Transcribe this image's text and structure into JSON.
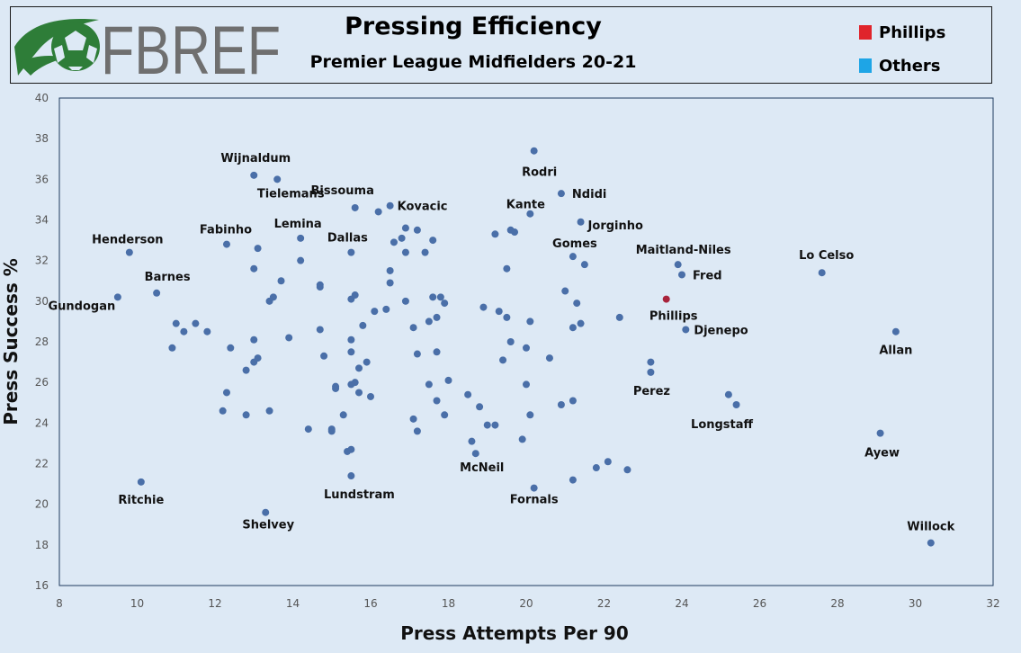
{
  "header": {
    "logo_text": "FBREF",
    "title": "Pressing Efficiency",
    "subtitle": "Premier League Midfielders 20-21"
  },
  "legend": [
    {
      "label": "Phillips",
      "color": "#e0242b"
    },
    {
      "label": "Others",
      "color": "#1ea5e6"
    }
  ],
  "colors": {
    "background": "#dde9f5",
    "point": "#4a6fa8",
    "highlight_point": "#a8233b"
  },
  "chart_data": {
    "type": "scatter",
    "title": "Pressing Efficiency",
    "subtitle": "Premier League Midfielders 20-21",
    "xlabel": "Press Attempts Per 90",
    "ylabel": "Press Success %",
    "xlim": [
      8,
      32
    ],
    "ylim": [
      16,
      40
    ],
    "xticks": [
      8,
      10,
      12,
      14,
      16,
      18,
      20,
      22,
      24,
      26,
      28,
      30,
      32
    ],
    "yticks": [
      16,
      18,
      20,
      22,
      24,
      26,
      28,
      30,
      32,
      34,
      36,
      38,
      40
    ],
    "grid": false,
    "legend_position": "top-right",
    "highlight": "Phillips",
    "labeled_points": [
      {
        "name": "Wijnaldum",
        "x": 13.0,
        "y": 36.2
      },
      {
        "name": "Tielemans",
        "x": 13.6,
        "y": 36.0
      },
      {
        "name": "Bissouma",
        "x": 15.6,
        "y": 34.6
      },
      {
        "name": "Kovacic",
        "x": 16.5,
        "y": 34.7
      },
      {
        "name": "Rodri",
        "x": 20.2,
        "y": 37.4
      },
      {
        "name": "Ndidi",
        "x": 20.9,
        "y": 35.3
      },
      {
        "name": "Kante",
        "x": 20.1,
        "y": 34.3
      },
      {
        "name": "Jorginho",
        "x": 21.4,
        "y": 33.9
      },
      {
        "name": "Henderson",
        "x": 9.8,
        "y": 32.4
      },
      {
        "name": "Fabinho",
        "x": 12.3,
        "y": 32.8
      },
      {
        "name": "Lemina",
        "x": 14.2,
        "y": 33.1
      },
      {
        "name": "Dallas",
        "x": 15.5,
        "y": 32.4
      },
      {
        "name": "Gomes",
        "x": 21.2,
        "y": 32.2
      },
      {
        "name": "Maitland-Niles",
        "x": 23.9,
        "y": 31.8
      },
      {
        "name": "Fred",
        "x": 24.0,
        "y": 31.3
      },
      {
        "name": "Lo Celso",
        "x": 27.6,
        "y": 31.4
      },
      {
        "name": "Barnes",
        "x": 10.5,
        "y": 30.4
      },
      {
        "name": "Gundogan",
        "x": 9.5,
        "y": 30.2
      },
      {
        "name": "Phillips",
        "x": 23.6,
        "y": 30.1
      },
      {
        "name": "Djenepo",
        "x": 24.1,
        "y": 28.6
      },
      {
        "name": "Allan",
        "x": 29.5,
        "y": 28.5
      },
      {
        "name": "Perez",
        "x": 23.2,
        "y": 26.5
      },
      {
        "name": "Longstaff",
        "x": 25.4,
        "y": 24.9
      },
      {
        "name": "Ayew",
        "x": 29.1,
        "y": 23.5
      },
      {
        "name": "McNeil",
        "x": 18.7,
        "y": 22.5
      },
      {
        "name": "Lundstram",
        "x": 15.5,
        "y": 21.4
      },
      {
        "name": "Fornals",
        "x": 20.2,
        "y": 20.8
      },
      {
        "name": "Ritchie",
        "x": 10.1,
        "y": 21.1
      },
      {
        "name": "Shelvey",
        "x": 13.3,
        "y": 19.6
      },
      {
        "name": "Willock",
        "x": 30.4,
        "y": 18.1
      }
    ],
    "unlabeled_points": [
      {
        "x": 11.0,
        "y": 28.9
      },
      {
        "x": 11.2,
        "y": 28.5
      },
      {
        "x": 11.5,
        "y": 28.9
      },
      {
        "x": 11.8,
        "y": 28.5
      },
      {
        "x": 10.9,
        "y": 27.7
      },
      {
        "x": 12.4,
        "y": 27.7
      },
      {
        "x": 12.3,
        "y": 25.5
      },
      {
        "x": 12.2,
        "y": 24.6
      },
      {
        "x": 12.8,
        "y": 24.4
      },
      {
        "x": 12.8,
        "y": 26.6
      },
      {
        "x": 13.0,
        "y": 27.0
      },
      {
        "x": 13.1,
        "y": 27.2
      },
      {
        "x": 13.0,
        "y": 28.1
      },
      {
        "x": 13.4,
        "y": 24.6
      },
      {
        "x": 13.1,
        "y": 32.6
      },
      {
        "x": 13.0,
        "y": 31.6
      },
      {
        "x": 13.4,
        "y": 30.0
      },
      {
        "x": 13.5,
        "y": 30.2
      },
      {
        "x": 13.7,
        "y": 31.0
      },
      {
        "x": 13.9,
        "y": 28.2
      },
      {
        "x": 14.2,
        "y": 32.0
      },
      {
        "x": 14.4,
        "y": 23.7
      },
      {
        "x": 14.7,
        "y": 30.8
      },
      {
        "x": 14.7,
        "y": 30.7
      },
      {
        "x": 14.7,
        "y": 28.6
      },
      {
        "x": 14.8,
        "y": 27.3
      },
      {
        "x": 15.0,
        "y": 23.7
      },
      {
        "x": 15.0,
        "y": 23.6
      },
      {
        "x": 15.1,
        "y": 25.8
      },
      {
        "x": 15.1,
        "y": 25.7
      },
      {
        "x": 15.3,
        "y": 24.4
      },
      {
        "x": 15.4,
        "y": 22.6
      },
      {
        "x": 15.5,
        "y": 22.7
      },
      {
        "x": 15.5,
        "y": 25.9
      },
      {
        "x": 15.6,
        "y": 26.0
      },
      {
        "x": 15.5,
        "y": 27.5
      },
      {
        "x": 15.5,
        "y": 28.1
      },
      {
        "x": 15.5,
        "y": 30.1
      },
      {
        "x": 15.6,
        "y": 30.3
      },
      {
        "x": 15.7,
        "y": 26.7
      },
      {
        "x": 15.7,
        "y": 25.5
      },
      {
        "x": 15.8,
        "y": 28.8
      },
      {
        "x": 15.9,
        "y": 27.0
      },
      {
        "x": 16.0,
        "y": 25.3
      },
      {
        "x": 16.1,
        "y": 29.5
      },
      {
        "x": 16.2,
        "y": 34.4
      },
      {
        "x": 16.4,
        "y": 29.6
      },
      {
        "x": 16.5,
        "y": 30.9
      },
      {
        "x": 16.5,
        "y": 31.5
      },
      {
        "x": 16.6,
        "y": 32.9
      },
      {
        "x": 16.8,
        "y": 33.1
      },
      {
        "x": 16.9,
        "y": 32.4
      },
      {
        "x": 16.9,
        "y": 30.0
      },
      {
        "x": 16.9,
        "y": 33.6
      },
      {
        "x": 17.1,
        "y": 28.7
      },
      {
        "x": 17.1,
        "y": 24.2
      },
      {
        "x": 17.2,
        "y": 23.6
      },
      {
        "x": 17.2,
        "y": 27.4
      },
      {
        "x": 17.2,
        "y": 33.5
      },
      {
        "x": 17.4,
        "y": 32.4
      },
      {
        "x": 17.5,
        "y": 29.0
      },
      {
        "x": 17.5,
        "y": 25.9
      },
      {
        "x": 17.6,
        "y": 33.0
      },
      {
        "x": 17.6,
        "y": 30.2
      },
      {
        "x": 17.7,
        "y": 29.2
      },
      {
        "x": 17.7,
        "y": 27.5
      },
      {
        "x": 17.7,
        "y": 25.1
      },
      {
        "x": 17.8,
        "y": 30.2
      },
      {
        "x": 17.9,
        "y": 29.9
      },
      {
        "x": 17.9,
        "y": 24.4
      },
      {
        "x": 18.0,
        "y": 26.1
      },
      {
        "x": 18.5,
        "y": 25.4
      },
      {
        "x": 18.6,
        "y": 23.1
      },
      {
        "x": 18.8,
        "y": 24.8
      },
      {
        "x": 18.9,
        "y": 29.7
      },
      {
        "x": 19.0,
        "y": 23.9
      },
      {
        "x": 19.2,
        "y": 23.9
      },
      {
        "x": 19.2,
        "y": 33.3
      },
      {
        "x": 19.3,
        "y": 29.5
      },
      {
        "x": 19.4,
        "y": 27.1
      },
      {
        "x": 19.5,
        "y": 29.2
      },
      {
        "x": 19.5,
        "y": 31.6
      },
      {
        "x": 19.6,
        "y": 28.0
      },
      {
        "x": 19.6,
        "y": 33.5
      },
      {
        "x": 19.7,
        "y": 33.4
      },
      {
        "x": 19.9,
        "y": 23.2
      },
      {
        "x": 20.0,
        "y": 27.7
      },
      {
        "x": 20.0,
        "y": 25.9
      },
      {
        "x": 20.1,
        "y": 24.4
      },
      {
        "x": 20.1,
        "y": 29.0
      },
      {
        "x": 20.6,
        "y": 27.2
      },
      {
        "x": 20.9,
        "y": 24.9
      },
      {
        "x": 21.0,
        "y": 30.5
      },
      {
        "x": 21.2,
        "y": 28.7
      },
      {
        "x": 21.2,
        "y": 21.2
      },
      {
        "x": 21.2,
        "y": 25.1
      },
      {
        "x": 21.3,
        "y": 29.9
      },
      {
        "x": 21.4,
        "y": 28.9
      },
      {
        "x": 21.5,
        "y": 31.8
      },
      {
        "x": 21.8,
        "y": 21.8
      },
      {
        "x": 22.1,
        "y": 22.1
      },
      {
        "x": 22.4,
        "y": 29.2
      },
      {
        "x": 22.6,
        "y": 21.7
      },
      {
        "x": 23.2,
        "y": 27.0
      },
      {
        "x": 25.2,
        "y": 25.4
      }
    ]
  }
}
